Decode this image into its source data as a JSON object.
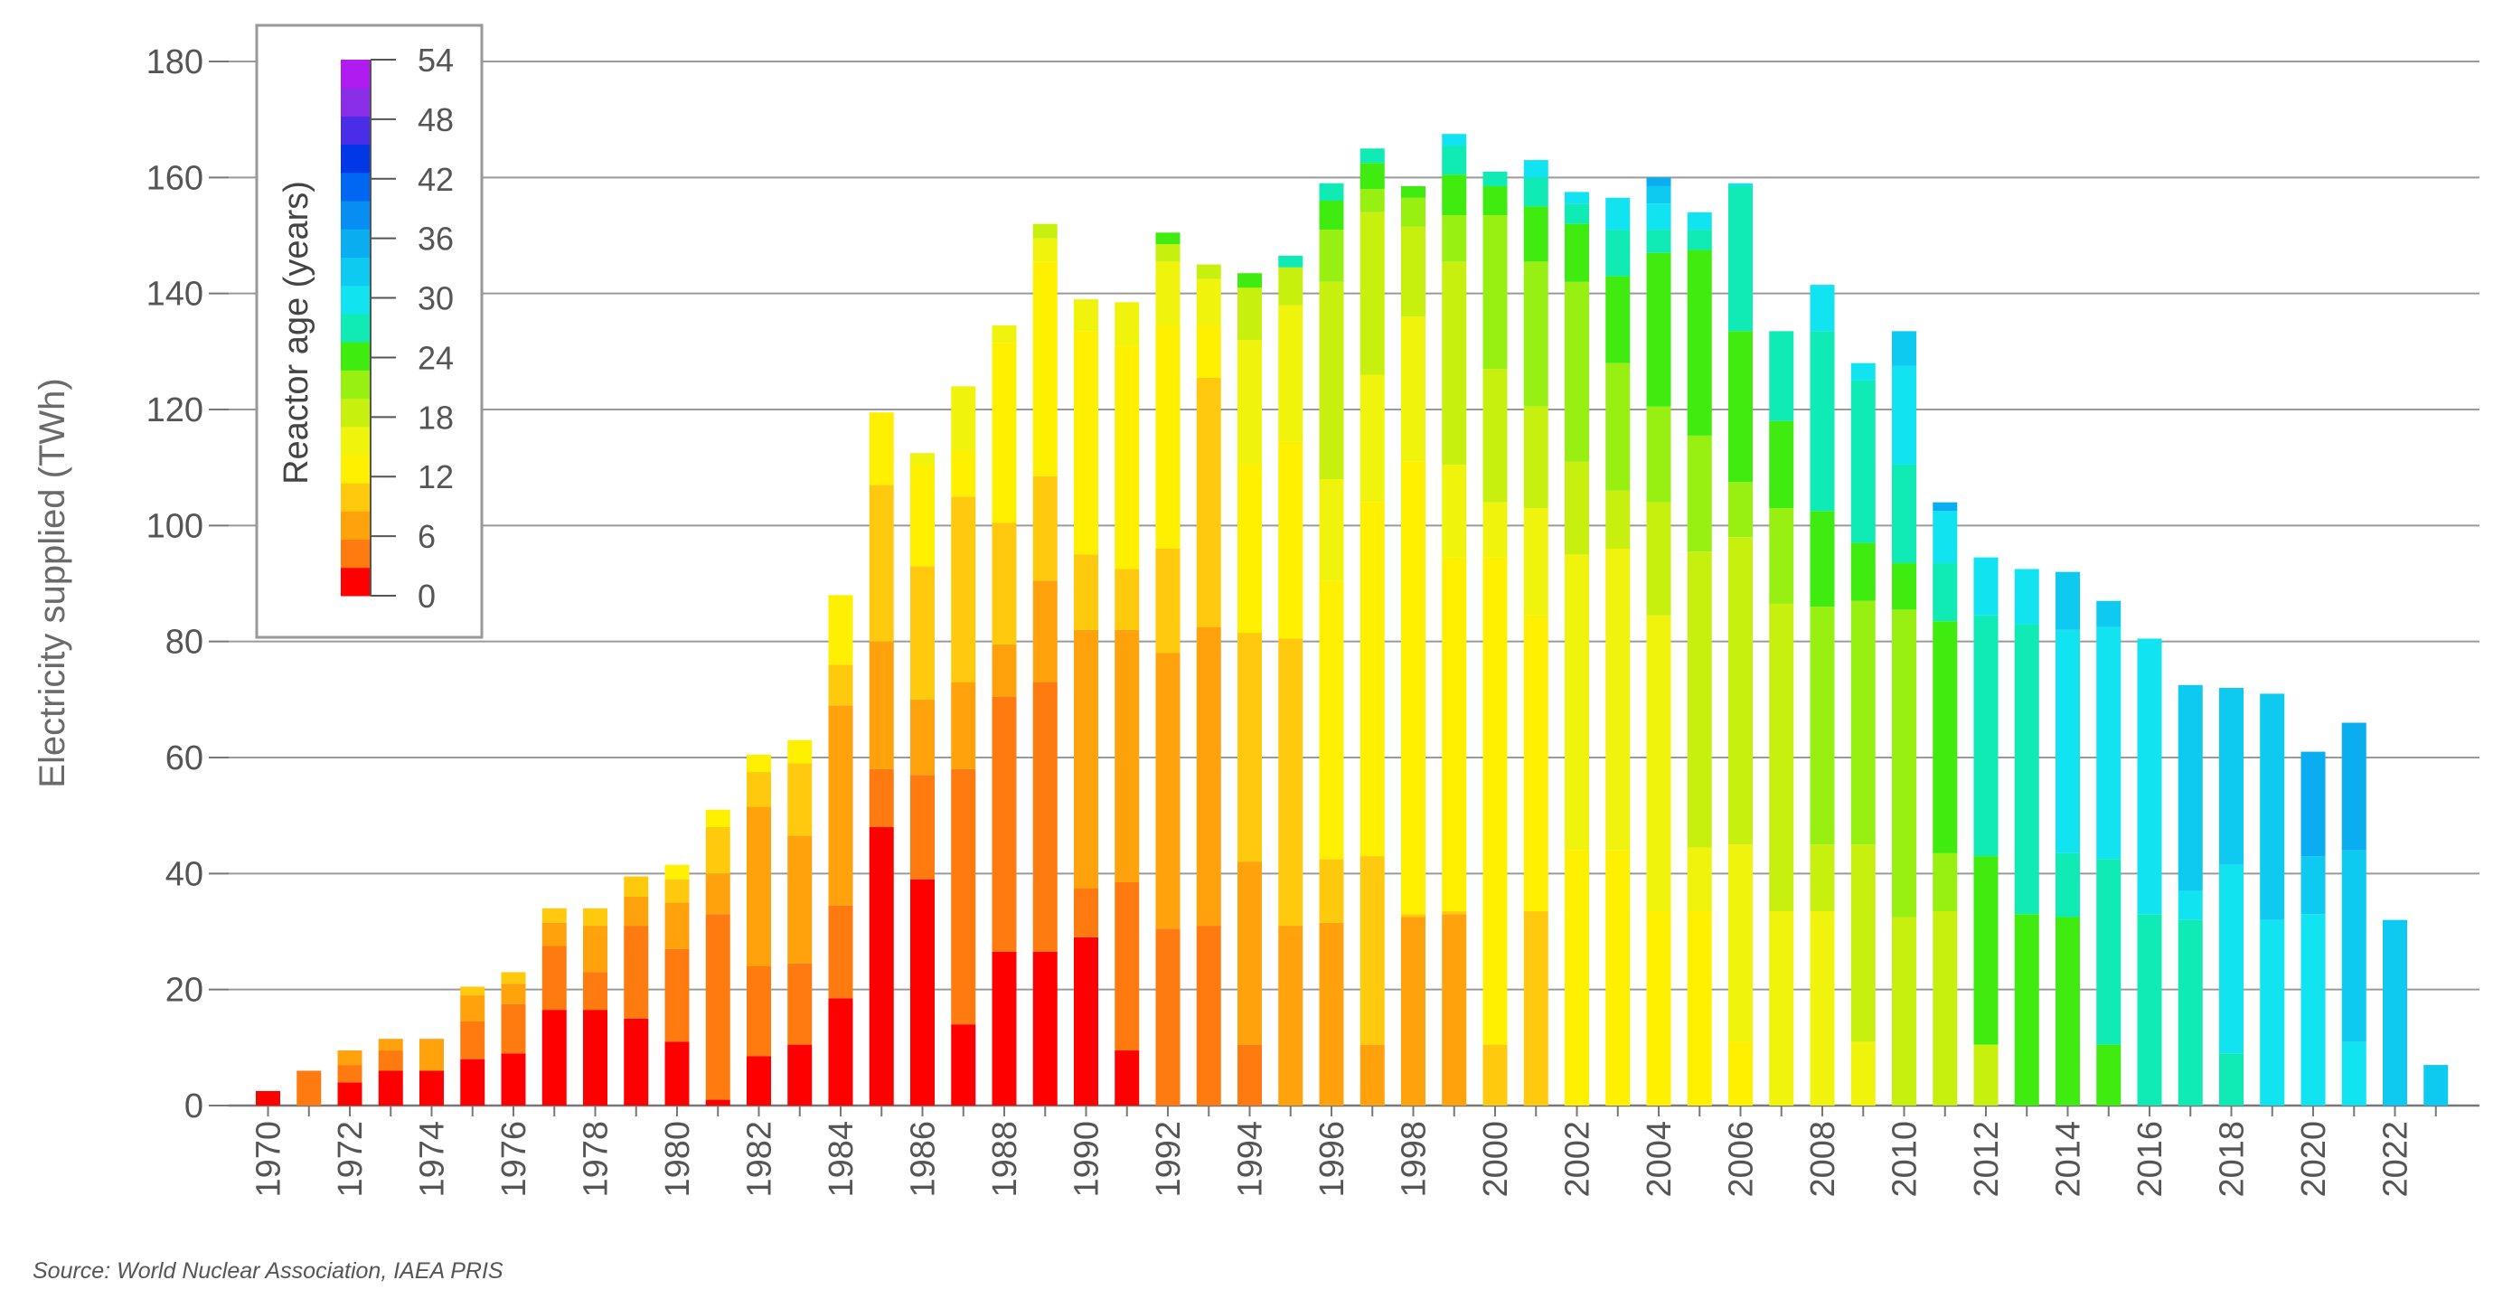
{
  "chart_data": {
    "type": "bar",
    "stacked": true,
    "ylabel": "Electricity supplied (TWh)",
    "xlabel": "",
    "ylim": [
      0,
      180
    ],
    "yticks": [
      0,
      20,
      40,
      60,
      80,
      100,
      120,
      140,
      160,
      180
    ],
    "grid": true,
    "legend": {
      "title": "Reactor age (years)",
      "placement": "top-left",
      "ticks": [
        0,
        6,
        12,
        18,
        24,
        30,
        36,
        42,
        48,
        54
      ],
      "bands": [
        {
          "label": "0-2",
          "color": "#ff0000"
        },
        {
          "label": "3-5",
          "color": "#ff7b0f"
        },
        {
          "label": "6-8",
          "color": "#ffa20b"
        },
        {
          "label": "9-11",
          "color": "#ffca0d"
        },
        {
          "label": "12-14",
          "color": "#fff000"
        },
        {
          "label": "15-17",
          "color": "#f0f40d"
        },
        {
          "label": "18-20",
          "color": "#c8f00f"
        },
        {
          "label": "21-23",
          "color": "#98f012"
        },
        {
          "label": "24-26",
          "color": "#40ec0f"
        },
        {
          "label": "27-29",
          "color": "#10eab4"
        },
        {
          "label": "30-32",
          "color": "#12e3f0"
        },
        {
          "label": "33-35",
          "color": "#0ecaf0"
        },
        {
          "label": "36-38",
          "color": "#0aaef0"
        },
        {
          "label": "39-41",
          "color": "#078ef2"
        },
        {
          "label": "42-44",
          "color": "#0067f2"
        },
        {
          "label": "45-47",
          "color": "#0037e6"
        },
        {
          "label": "48-50",
          "color": "#4a2de8"
        },
        {
          "label": "51-53",
          "color": "#8a2ee8"
        },
        {
          "label": "54+",
          "color": "#b01cf0"
        }
      ]
    },
    "colors": {
      "c0": "#ff0000",
      "c1": "#ff7b0f",
      "c2": "#ffa20b",
      "c3": "#ffca0d",
      "c4": "#fff000",
      "c5": "#f0f40d",
      "c6": "#c8f00f",
      "c7": "#98f012",
      "c8": "#40ec0f",
      "c9": "#10eab4",
      "c10": "#12e3f0",
      "c11": "#0ecaf0",
      "c12": "#0aaef0"
    },
    "categories": [
      1970,
      1971,
      1972,
      1973,
      1974,
      1975,
      1976,
      1977,
      1978,
      1979,
      1980,
      1981,
      1982,
      1983,
      1984,
      1985,
      1986,
      1987,
      1988,
      1989,
      1990,
      1991,
      1992,
      1993,
      1994,
      1995,
      1996,
      1997,
      1998,
      1999,
      2000,
      2001,
      2002,
      2003,
      2004,
      2005,
      2006,
      2007,
      2008,
      2009,
      2010,
      2011,
      2012,
      2013,
      2014,
      2015,
      2016,
      2017,
      2018,
      2019,
      2020,
      2021,
      2022,
      2023
    ],
    "xtick_labels": [
      "1970",
      "1972",
      "1974",
      "1976",
      "1978",
      "1980",
      "1982",
      "1984",
      "1986",
      "1988",
      "1990",
      "1992",
      "1994",
      "1996",
      "1998",
      "2000",
      "2002",
      "2004",
      "2006",
      "2008",
      "2010",
      "2012",
      "2014",
      "2016",
      "2018",
      "2020",
      "2022"
    ],
    "segments": [
      [
        [
          "c0",
          2.5
        ]
      ],
      [
        [
          "c1",
          6
        ]
      ],
      [
        [
          "c0",
          4
        ],
        [
          "c1",
          3
        ],
        [
          "c2",
          2.5
        ]
      ],
      [
        [
          "c0",
          6
        ],
        [
          "c1",
          3.5
        ],
        [
          "c2",
          2
        ]
      ],
      [
        [
          "c0",
          6
        ],
        [
          "c2",
          5.5
        ]
      ],
      [
        [
          "c0",
          8
        ],
        [
          "c1",
          6.5
        ],
        [
          "c2",
          4.5
        ],
        [
          "c3",
          1.5
        ]
      ],
      [
        [
          "c0",
          9
        ],
        [
          "c1",
          8.5
        ],
        [
          "c2",
          3.5
        ],
        [
          "c3",
          2
        ]
      ],
      [
        [
          "c0",
          16.5
        ],
        [
          "c1",
          11
        ],
        [
          "c2",
          4
        ],
        [
          "c3",
          2.5
        ]
      ],
      [
        [
          "c0",
          16.5
        ],
        [
          "c1",
          6.5
        ],
        [
          "c2",
          8
        ],
        [
          "c3",
          3
        ]
      ],
      [
        [
          "c0",
          15
        ],
        [
          "c1",
          16
        ],
        [
          "c2",
          5
        ],
        [
          "c3",
          3.5
        ]
      ],
      [
        [
          "c0",
          11
        ],
        [
          "c1",
          16
        ],
        [
          "c2",
          8
        ],
        [
          "c3",
          4
        ],
        [
          "c4",
          2.5
        ]
      ],
      [
        [
          "c0",
          1
        ],
        [
          "c1",
          32
        ],
        [
          "c2",
          7
        ],
        [
          "c3",
          8
        ],
        [
          "c4",
          3
        ]
      ],
      [
        [
          "c0",
          8.5
        ],
        [
          "c1",
          15.5
        ],
        [
          "c2",
          27.5
        ],
        [
          "c3",
          6
        ],
        [
          "c4",
          3
        ]
      ],
      [
        [
          "c0",
          10.5
        ],
        [
          "c1",
          14
        ],
        [
          "c2",
          22
        ],
        [
          "c3",
          12.5
        ],
        [
          "c4",
          4
        ]
      ],
      [
        [
          "c0",
          18.5
        ],
        [
          "c1",
          16
        ],
        [
          "c2",
          34.5
        ],
        [
          "c3",
          7
        ],
        [
          "c4",
          12
        ]
      ],
      [
        [
          "c0",
          48
        ],
        [
          "c1",
          10
        ],
        [
          "c2",
          22
        ],
        [
          "c3",
          27
        ],
        [
          "c4",
          12.5
        ]
      ],
      [
        [
          "c0",
          39
        ],
        [
          "c1",
          18
        ],
        [
          "c2",
          13
        ],
        [
          "c3",
          23
        ],
        [
          "c4",
          17.5
        ],
        [
          "c5",
          2
        ]
      ],
      [
        [
          "c0",
          14
        ],
        [
          "c1",
          44
        ],
        [
          "c2",
          15
        ],
        [
          "c3",
          32
        ],
        [
          "c4",
          8
        ],
        [
          "c5",
          11
        ]
      ],
      [
        [
          "c0",
          26.5
        ],
        [
          "c1",
          44
        ],
        [
          "c2",
          9
        ],
        [
          "c3",
          21
        ],
        [
          "c4",
          31
        ],
        [
          "c5",
          3
        ]
      ],
      [
        [
          "c0",
          26.5
        ],
        [
          "c1",
          46.5
        ],
        [
          "c2",
          17.5
        ],
        [
          "c3",
          18
        ],
        [
          "c4",
          37
        ],
        [
          "c5",
          4
        ],
        [
          "c6",
          2.5
        ]
      ],
      [
        [
          "c0",
          29
        ],
        [
          "c1",
          8.5
        ],
        [
          "c2",
          44.5
        ],
        [
          "c3",
          13
        ],
        [
          "c4",
          38.5
        ],
        [
          "c5",
          5.5
        ]
      ],
      [
        [
          "c0",
          9.5
        ],
        [
          "c1",
          29
        ],
        [
          "c2",
          43.5
        ],
        [
          "c3",
          10.5
        ],
        [
          "c4",
          38.5
        ],
        [
          "c5",
          7.5
        ]
      ],
      [
        [
          "c1",
          30.5
        ],
        [
          "c2",
          47.5
        ],
        [
          "c3",
          18
        ],
        [
          "c4",
          38.5
        ],
        [
          "c5",
          11
        ],
        [
          "c6",
          3
        ],
        [
          "c8",
          2
        ]
      ],
      [
        [
          "c1",
          31
        ],
        [
          "c2",
          51.5
        ],
        [
          "c3",
          43
        ],
        [
          "c4",
          9
        ],
        [
          "c5",
          8
        ],
        [
          "c6",
          2.5
        ]
      ],
      [
        [
          "c1",
          10.5
        ],
        [
          "c2",
          31.5
        ],
        [
          "c3",
          39.5
        ],
        [
          "c4",
          29
        ],
        [
          "c5",
          21.5
        ],
        [
          "c6",
          9
        ],
        [
          "c8",
          2.5
        ]
      ],
      [
        [
          "c2",
          31
        ],
        [
          "c3",
          49.5
        ],
        [
          "c4",
          34
        ],
        [
          "c5",
          23.5
        ],
        [
          "c6",
          6.5
        ],
        [
          "c9",
          2
        ]
      ],
      [
        [
          "c2",
          31.5
        ],
        [
          "c3",
          11
        ],
        [
          "c4",
          48
        ],
        [
          "c5",
          17.5
        ],
        [
          "c6",
          34
        ],
        [
          "c7",
          9
        ],
        [
          "c8",
          5
        ],
        [
          "c9",
          3
        ]
      ],
      [
        [
          "c2",
          10.5
        ],
        [
          "c3",
          32.5
        ],
        [
          "c4",
          61
        ],
        [
          "c5",
          22
        ],
        [
          "c6",
          28
        ],
        [
          "c7",
          4
        ],
        [
          "c8",
          4.5
        ],
        [
          "c9",
          2.5
        ]
      ],
      [
        [
          "c2",
          32.5
        ],
        [
          "c3",
          0.5
        ],
        [
          "c4",
          78
        ],
        [
          "c5",
          25
        ],
        [
          "c6",
          15.5
        ],
        [
          "c7",
          5
        ],
        [
          "c8",
          2
        ]
      ],
      [
        [
          "c2",
          33
        ],
        [
          "c3",
          0.5
        ],
        [
          "c4",
          61
        ],
        [
          "c5",
          16
        ],
        [
          "c6",
          35
        ],
        [
          "c7",
          8
        ],
        [
          "c8",
          7
        ],
        [
          "c9",
          5
        ],
        [
          "c10",
          2
        ]
      ],
      [
        [
          "c3",
          10.5
        ],
        [
          "c4",
          84
        ],
        [
          "c5",
          9.5
        ],
        [
          "c6",
          23
        ],
        [
          "c7",
          26.5
        ],
        [
          "c8",
          5
        ],
        [
          "c9",
          2.5
        ]
      ],
      [
        [
          "c3",
          33.5
        ],
        [
          "c4",
          51
        ],
        [
          "c5",
          18.5
        ],
        [
          "c6",
          17.5
        ],
        [
          "c7",
          25
        ],
        [
          "c8",
          9.5
        ],
        [
          "c9",
          5
        ],
        [
          "c10",
          3
        ]
      ],
      [
        [
          "c4",
          44
        ],
        [
          "c5",
          51
        ],
        [
          "c6",
          16
        ],
        [
          "c7",
          31
        ],
        [
          "c8",
          10
        ],
        [
          "c9",
          3.5
        ],
        [
          "c10",
          2
        ]
      ],
      [
        [
          "c4",
          44
        ],
        [
          "c5",
          52
        ],
        [
          "c6",
          10
        ],
        [
          "c7",
          22
        ],
        [
          "c8",
          15
        ],
        [
          "c9",
          8
        ],
        [
          "c10",
          5.5
        ]
      ],
      [
        [
          "c4",
          33.5
        ],
        [
          "c5",
          51
        ],
        [
          "c6",
          19.5
        ],
        [
          "c7",
          16.5
        ],
        [
          "c8",
          26.5
        ],
        [
          "c9",
          4
        ],
        [
          "c10",
          4.5
        ],
        [
          "c11",
          3
        ],
        [
          "c12",
          1.5
        ]
      ],
      [
        [
          "c4",
          33.5
        ],
        [
          "c5",
          11
        ],
        [
          "c6",
          51
        ],
        [
          "c7",
          20
        ],
        [
          "c8",
          32
        ],
        [
          "c9",
          3.5
        ],
        [
          "c10",
          3
        ]
      ],
      [
        [
          "c4",
          11
        ],
        [
          "c5",
          34
        ],
        [
          "c6",
          53
        ],
        [
          "c7",
          9.5
        ],
        [
          "c8",
          26
        ],
        [
          "c9",
          25
        ],
        [
          "c10",
          0.5
        ]
      ],
      [
        [
          "c5",
          33.5
        ],
        [
          "c6",
          53
        ],
        [
          "c7",
          16.5
        ],
        [
          "c8",
          15
        ],
        [
          "c9",
          15.5
        ]
      ],
      [
        [
          "c5",
          33.5
        ],
        [
          "c6",
          11.5
        ],
        [
          "c7",
          41
        ],
        [
          "c8",
          16.5
        ],
        [
          "c9",
          31
        ],
        [
          "c10",
          8
        ]
      ],
      [
        [
          "c5",
          11
        ],
        [
          "c6",
          34
        ],
        [
          "c7",
          42
        ],
        [
          "c8",
          10
        ],
        [
          "c9",
          28
        ],
        [
          "c10",
          3
        ]
      ],
      [
        [
          "c6",
          32.5
        ],
        [
          "c7",
          53
        ],
        [
          "c8",
          8
        ],
        [
          "c9",
          17
        ],
        [
          "c10",
          17
        ],
        [
          "c11",
          6
        ]
      ],
      [
        [
          "c6",
          33.5
        ],
        [
          "c7",
          10
        ],
        [
          "c8",
          40
        ],
        [
          "c9",
          10
        ],
        [
          "c10",
          9
        ],
        [
          "c12",
          1.5
        ]
      ],
      [
        [
          "c6",
          10.5
        ],
        [
          "c8",
          32.5
        ],
        [
          "c9",
          41.5
        ],
        [
          "c10",
          10
        ]
      ],
      [
        [
          "c8",
          33
        ],
        [
          "c9",
          50
        ],
        [
          "c10",
          9.5
        ]
      ],
      [
        [
          "c8",
          32.5
        ],
        [
          "c9",
          11
        ],
        [
          "c10",
          38.5
        ],
        [
          "c11",
          10
        ]
      ],
      [
        [
          "c8",
          10.5
        ],
        [
          "c9",
          32
        ],
        [
          "c10",
          40
        ],
        [
          "c11",
          4.5
        ]
      ],
      [
        [
          "c9",
          33
        ],
        [
          "c10",
          47.5
        ]
      ],
      [
        [
          "c9",
          32
        ],
        [
          "c10",
          5
        ],
        [
          "c11",
          35.5
        ]
      ],
      [
        [
          "c9",
          9
        ],
        [
          "c10",
          32.5
        ],
        [
          "c11",
          30.5
        ]
      ],
      [
        [
          "c10",
          32
        ],
        [
          "c11",
          39
        ]
      ],
      [
        [
          "c10",
          33
        ],
        [
          "c11",
          10
        ],
        [
          "c12",
          18
        ]
      ],
      [
        [
          "c10",
          11
        ],
        [
          "c11",
          33
        ],
        [
          "c12",
          22
        ]
      ],
      [
        [
          "c11",
          32
        ]
      ],
      [
        [
          "c11",
          7
        ]
      ]
    ]
  },
  "source": "Source: World Nuclear Association, IAEA PRIS"
}
